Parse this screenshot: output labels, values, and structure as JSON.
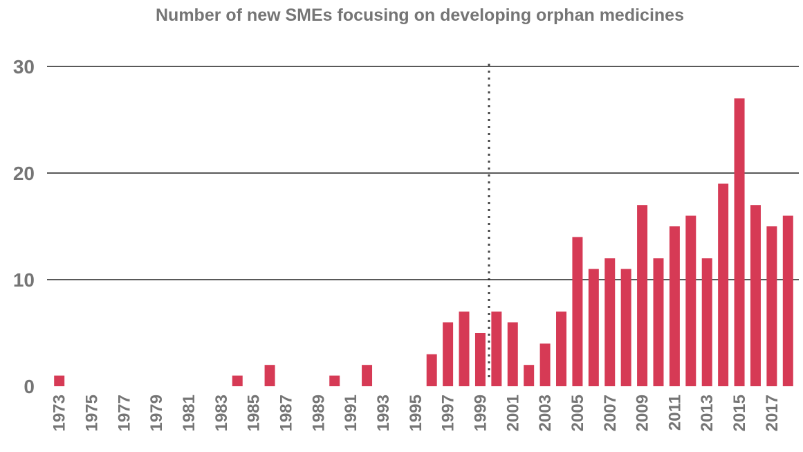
{
  "chart_data": {
    "type": "bar",
    "title": "Number of new SMEs focusing on developing orphan medicines",
    "categories": [
      "1973",
      null,
      "1975",
      null,
      "1977",
      null,
      "1979",
      null,
      "1981",
      null,
      "1983",
      null,
      "1985",
      null,
      "1987",
      null,
      "1989",
      null,
      "1991",
      null,
      "1993",
      null,
      "1995",
      null,
      "1997",
      null,
      "1999",
      null,
      "2001",
      null,
      "2003",
      null,
      "2005",
      null,
      "2007",
      null,
      "2009",
      null,
      "2011",
      null,
      "2013",
      null,
      "2015",
      null,
      "2017",
      null
    ],
    "values": [
      1,
      0,
      0,
      0,
      0,
      0,
      0,
      0,
      0,
      0,
      0,
      1,
      0,
      2,
      0,
      0,
      0,
      1,
      0,
      2,
      0,
      0,
      0,
      3,
      6,
      7,
      5,
      7,
      6,
      2,
      4,
      7,
      14,
      11,
      12,
      11,
      17,
      12,
      15,
      16,
      12,
      19,
      27,
      17,
      15,
      16
    ],
    "color": "#d63a55",
    "ylim": [
      0,
      30
    ],
    "yticks": [
      0,
      10,
      20,
      30
    ],
    "grid": true
  }
}
